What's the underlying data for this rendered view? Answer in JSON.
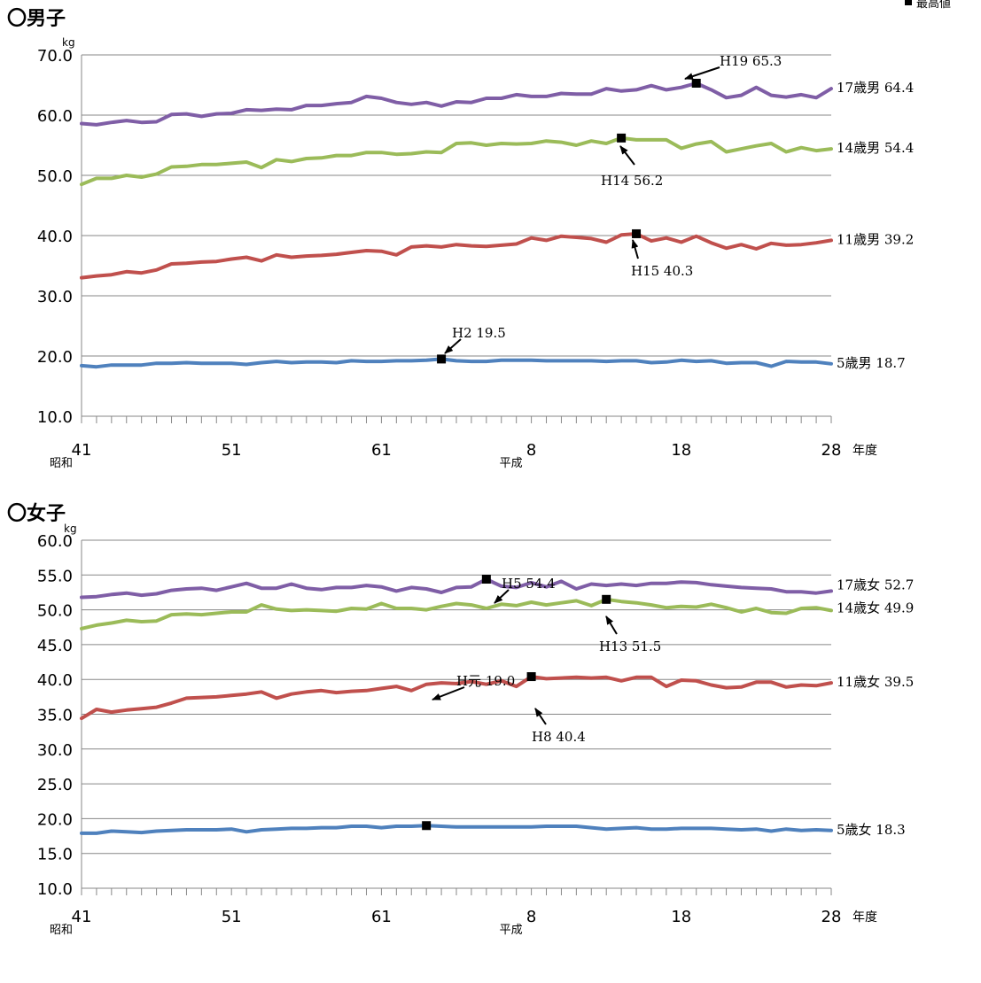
{
  "legend": {
    "label": "最高値",
    "marker_color": "#000000"
  },
  "chart_data": [
    {
      "type": "line",
      "title": "〇男子",
      "ylabel": "kg",
      "xunit": "年度",
      "ylim": [
        10,
        70
      ],
      "yticks": [
        "10.0",
        "20.0",
        "30.0",
        "40.0",
        "50.0",
        "60.0",
        "70.0"
      ],
      "xticks": [
        {
          "era": "昭和",
          "label": "41",
          "index": 0
        },
        {
          "era": "",
          "label": "51",
          "index": 10
        },
        {
          "era": "",
          "label": "61",
          "index": 20
        },
        {
          "era": "平成",
          "label": "8",
          "index": 30
        },
        {
          "era": "",
          "label": "18",
          "index": 40
        },
        {
          "era": "",
          "label": "28",
          "index": 50
        }
      ],
      "grid": true,
      "series": [
        {
          "name": "17歳男",
          "color": "#7f5ea6",
          "end_label": "17歳男",
          "end_value": "64.4",
          "values": [
            58.6,
            58.4,
            58.8,
            59.1,
            58.8,
            58.9,
            60.1,
            60.2,
            59.8,
            60.2,
            60.3,
            60.9,
            60.8,
            61.0,
            60.9,
            61.6,
            61.6,
            61.9,
            62.1,
            63.1,
            62.8,
            62.1,
            61.8,
            62.1,
            61.5,
            62.2,
            62.1,
            62.8,
            62.8,
            63.4,
            63.1,
            63.1,
            63.6,
            63.5,
            63.5,
            64.4,
            64.0,
            64.2,
            64.9,
            64.2,
            64.6,
            65.3,
            64.2,
            62.9,
            63.3,
            64.6,
            63.3,
            63.0,
            63.4,
            62.9,
            64.4
          ]
        },
        {
          "name": "14歳男",
          "color": "#9bbb59",
          "end_label": "14歳男",
          "end_value": "54.4",
          "values": [
            48.5,
            49.5,
            49.5,
            50.0,
            49.7,
            50.2,
            51.4,
            51.5,
            51.8,
            51.8,
            52.0,
            52.2,
            51.3,
            52.6,
            52.3,
            52.8,
            52.9,
            53.3,
            53.3,
            53.8,
            53.8,
            53.5,
            53.6,
            53.9,
            53.8,
            55.3,
            55.4,
            55.0,
            55.3,
            55.2,
            55.3,
            55.7,
            55.5,
            55.0,
            55.7,
            55.3,
            56.2,
            55.9,
            55.9,
            55.9,
            54.5,
            55.2,
            55.6,
            53.9,
            54.4,
            54.9,
            55.3,
            53.9,
            54.6,
            54.1,
            54.4
          ]
        },
        {
          "name": "11歳男",
          "color": "#c0504d",
          "end_label": "11歳男",
          "end_value": "39.2",
          "values": [
            33.0,
            33.3,
            33.5,
            34.0,
            33.8,
            34.3,
            35.3,
            35.4,
            35.6,
            35.7,
            36.1,
            36.4,
            35.8,
            36.8,
            36.4,
            36.6,
            36.7,
            36.9,
            37.2,
            37.5,
            37.4,
            36.8,
            38.1,
            38.3,
            38.1,
            38.5,
            38.3,
            38.2,
            38.4,
            38.6,
            39.6,
            39.2,
            39.9,
            39.7,
            39.5,
            38.9,
            40.1,
            40.3,
            39.1,
            39.6,
            38.9,
            39.9,
            38.8,
            37.9,
            38.5,
            37.8,
            38.7,
            38.4,
            38.5,
            38.8,
            39.2
          ]
        },
        {
          "name": "5歳男",
          "color": "#4f81bd",
          "end_label": "5歳男",
          "end_value": "18.7",
          "values": [
            18.4,
            18.2,
            18.5,
            18.5,
            18.5,
            18.8,
            18.8,
            18.9,
            18.8,
            18.8,
            18.8,
            18.6,
            18.9,
            19.1,
            18.9,
            19.0,
            19.0,
            18.9,
            19.2,
            19.1,
            19.1,
            19.2,
            19.2,
            19.3,
            19.5,
            19.2,
            19.1,
            19.1,
            19.3,
            19.3,
            19.3,
            19.2,
            19.2,
            19.2,
            19.2,
            19.1,
            19.2,
            19.2,
            18.9,
            19.0,
            19.3,
            19.1,
            19.2,
            18.8,
            18.9,
            18.9,
            18.3,
            19.1,
            19.0,
            19.0,
            18.7
          ]
        }
      ],
      "max_points": [
        {
          "series": "17歳男",
          "index": 41,
          "value": 65.3,
          "label": "H19",
          "value_text": "65.3"
        },
        {
          "series": "14歳男",
          "index": 36,
          "value": 56.2,
          "label": "H14",
          "value_text": "56.2"
        },
        {
          "series": "11歳男",
          "index": 37,
          "value": 40.3,
          "label": "H15",
          "value_text": "40.3"
        },
        {
          "series": "5歳男",
          "index": 24,
          "value": 19.5,
          "label": "H2",
          "value_text": "19.5"
        }
      ]
    },
    {
      "type": "line",
      "title": "〇女子",
      "ylabel": "kg",
      "xunit": "年度",
      "ylim": [
        10,
        60
      ],
      "yticks": [
        "10.0",
        "15.0",
        "20.0",
        "25.0",
        "30.0",
        "35.0",
        "40.0",
        "45.0",
        "50.0",
        "55.0",
        "60.0"
      ],
      "xticks": [
        {
          "era": "昭和",
          "label": "41",
          "index": 0
        },
        {
          "era": "",
          "label": "51",
          "index": 10
        },
        {
          "era": "",
          "label": "61",
          "index": 20
        },
        {
          "era": "平成",
          "label": "8",
          "index": 30
        },
        {
          "era": "",
          "label": "18",
          "index": 40
        },
        {
          "era": "",
          "label": "28",
          "index": 50
        }
      ],
      "grid": true,
      "series": [
        {
          "name": "17歳女",
          "color": "#7f5ea6",
          "end_label": "17歳女",
          "end_value": "52.7",
          "values": [
            51.8,
            51.9,
            52.2,
            52.4,
            52.1,
            52.3,
            52.8,
            53.0,
            53.1,
            52.8,
            53.3,
            53.8,
            53.1,
            53.1,
            53.7,
            53.1,
            52.9,
            53.2,
            53.2,
            53.5,
            53.3,
            52.7,
            53.2,
            53.0,
            52.5,
            53.2,
            53.3,
            54.4,
            53.4,
            53.2,
            53.9,
            53.3,
            54.1,
            53.0,
            53.7,
            53.5,
            53.7,
            53.5,
            53.8,
            53.8,
            54.0,
            53.9,
            53.6,
            53.4,
            53.2,
            53.1,
            53.0,
            52.6,
            52.6,
            52.4,
            52.7
          ]
        },
        {
          "name": "14歳女",
          "color": "#9bbb59",
          "end_label": "14歳女",
          "end_value": "49.9",
          "values": [
            47.3,
            47.8,
            48.1,
            48.5,
            48.3,
            48.4,
            49.3,
            49.4,
            49.3,
            49.5,
            49.7,
            49.7,
            50.7,
            50.1,
            49.9,
            50.0,
            49.9,
            49.8,
            50.2,
            50.1,
            50.9,
            50.2,
            50.2,
            50.0,
            50.5,
            50.9,
            50.7,
            50.2,
            50.8,
            50.6,
            51.1,
            50.7,
            51.0,
            51.3,
            50.6,
            51.5,
            51.2,
            51.0,
            50.7,
            50.3,
            50.5,
            50.4,
            50.8,
            50.3,
            49.7,
            50.2,
            49.6,
            49.5,
            50.2,
            50.3,
            49.9
          ]
        },
        {
          "name": "11歳女",
          "color": "#c0504d",
          "end_label": "11歳女",
          "end_value": "39.5",
          "values": [
            34.4,
            35.7,
            35.3,
            35.6,
            35.8,
            36.0,
            36.6,
            37.3,
            37.4,
            37.5,
            37.7,
            37.9,
            38.2,
            37.3,
            37.9,
            38.2,
            38.4,
            38.1,
            38.3,
            38.4,
            38.7,
            39.0,
            38.4,
            39.3,
            39.5,
            39.4,
            39.7,
            39.3,
            39.8,
            39.0,
            40.4,
            40.1,
            40.2,
            40.3,
            40.2,
            40.3,
            39.8,
            40.3,
            40.3,
            39.0,
            39.9,
            39.8,
            39.2,
            38.8,
            38.9,
            39.6,
            39.6,
            38.9,
            39.2,
            39.1,
            39.5
          ]
        },
        {
          "name": "5歳女",
          "color": "#4f81bd",
          "end_label": "5歳女",
          "end_value": "18.3",
          "values": [
            17.9,
            17.9,
            18.2,
            18.1,
            18.0,
            18.2,
            18.3,
            18.4,
            18.4,
            18.4,
            18.5,
            18.1,
            18.4,
            18.5,
            18.6,
            18.6,
            18.7,
            18.7,
            18.9,
            18.9,
            18.7,
            18.9,
            18.9,
            19.0,
            18.9,
            18.8,
            18.8,
            18.8,
            18.8,
            18.8,
            18.8,
            18.9,
            18.9,
            18.9,
            18.7,
            18.5,
            18.6,
            18.7,
            18.5,
            18.5,
            18.6,
            18.6,
            18.6,
            18.5,
            18.4,
            18.5,
            18.2,
            18.5,
            18.3,
            18.4,
            18.3
          ]
        }
      ],
      "max_points": [
        {
          "series": "17歳女",
          "index": 27,
          "value": 54.4,
          "label": "H5",
          "value_text": "54.4"
        },
        {
          "series": "14歳女",
          "index": 35,
          "value": 51.5,
          "label": "H13",
          "value_text": "51.5"
        },
        {
          "series": "11歳女",
          "index": 30,
          "value": 40.4,
          "label": "H8",
          "value_text": "40.4"
        },
        {
          "series": "5歳女",
          "index": 23,
          "value": 19.0,
          "label": "H元",
          "value_text": "19.0"
        }
      ]
    }
  ]
}
